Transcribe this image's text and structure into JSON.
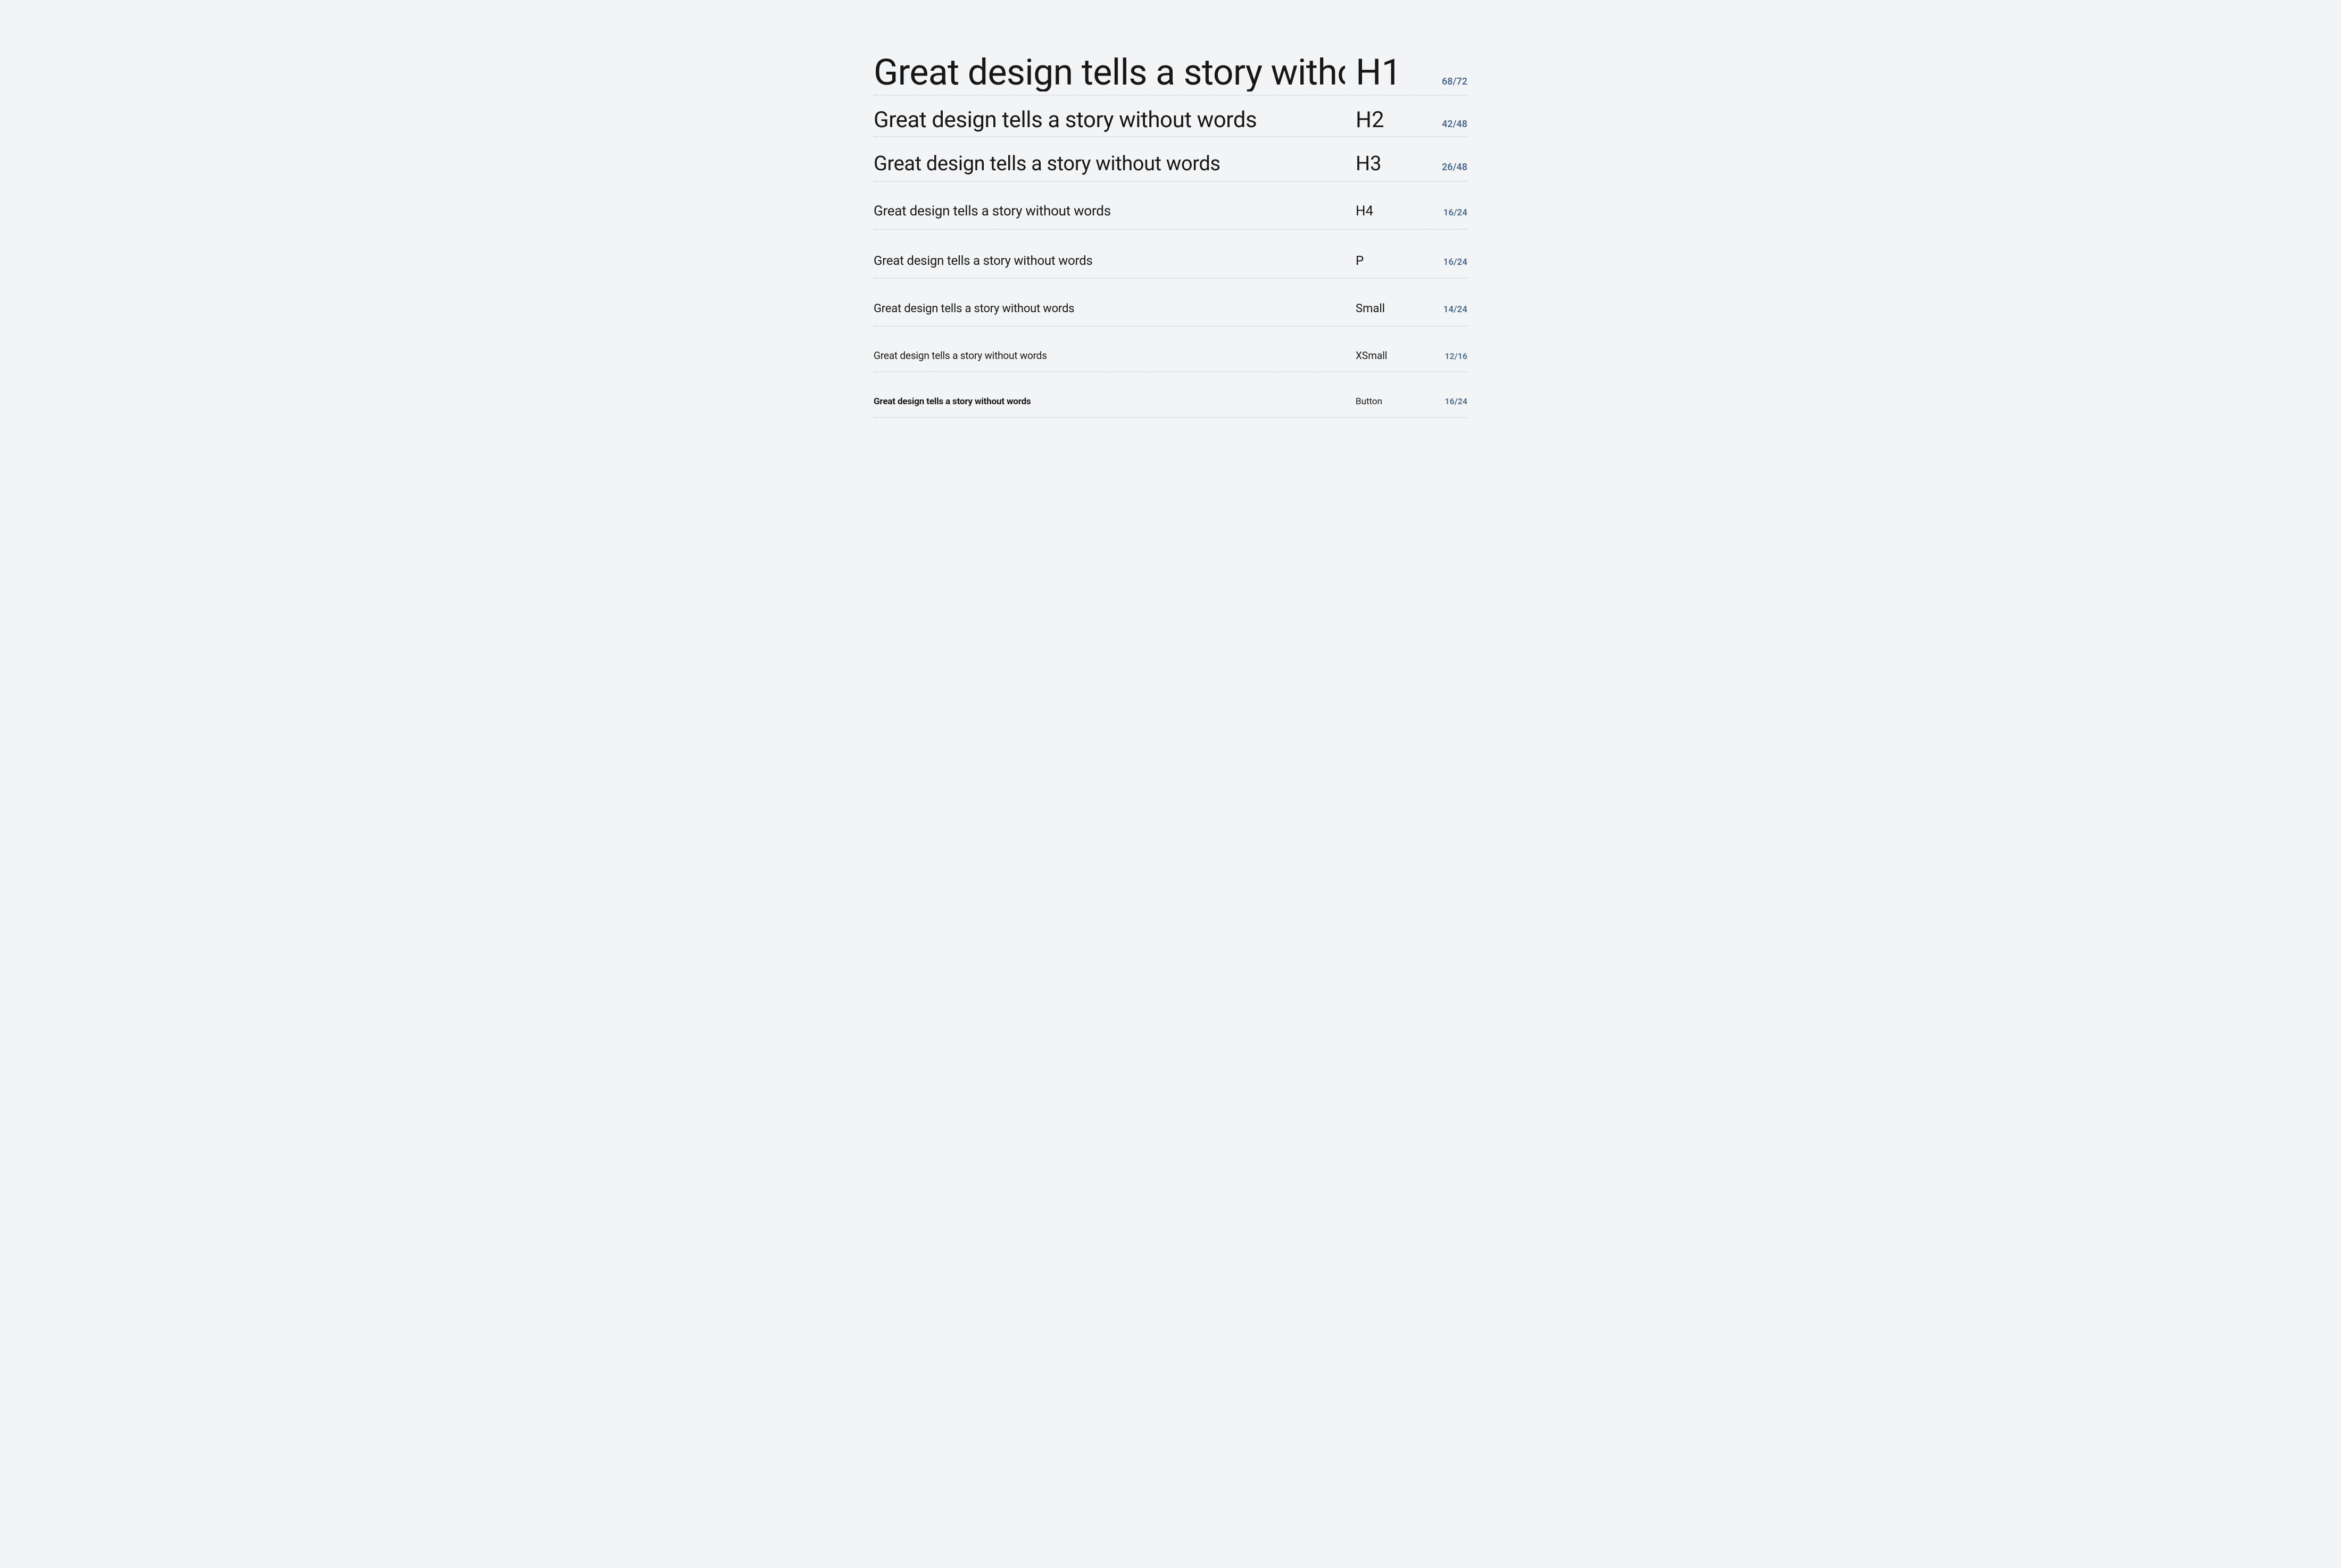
{
  "colors": {
    "background": "#f3f4f6",
    "text": "#171717",
    "spec": "#4a6a8a",
    "divider": "#d0d3d8"
  },
  "rows": {
    "h1": {
      "sample": "Great design tells a story without",
      "label": "H1",
      "spec": "68/72",
      "font_size": 68,
      "line_height": 72,
      "weight": 400
    },
    "h2": {
      "sample": "Great design tells a story without words",
      "label": "H2",
      "spec": "42/48",
      "font_size": 42,
      "line_height": 48,
      "weight": 400
    },
    "h3": {
      "sample": "Great design tells a story without words",
      "label": "H3",
      "spec": "26/48",
      "font_size": 26,
      "line_height": 48,
      "weight": 400
    },
    "h4": {
      "sample": "Great design tells a story without words",
      "label": "H4",
      "spec": "16/24",
      "font_size": 16,
      "line_height": 24,
      "weight": 400
    },
    "p": {
      "sample": "Great design tells a story without words",
      "label": "P",
      "spec": "16/24",
      "font_size": 16,
      "line_height": 24,
      "weight": 400
    },
    "small": {
      "sample": "Great design tells a story without words",
      "label": "Small",
      "spec": "14/24",
      "font_size": 14,
      "line_height": 24,
      "weight": 400
    },
    "xsmall": {
      "sample": "Great design tells a story without words",
      "label": "XSmall",
      "spec": "12/16",
      "font_size": 12,
      "line_height": 16,
      "weight": 400
    },
    "button": {
      "sample": "Great design tells a story without words",
      "label": "Button",
      "spec": "16/24",
      "font_size": 16,
      "line_height": 24,
      "weight": 700
    }
  }
}
